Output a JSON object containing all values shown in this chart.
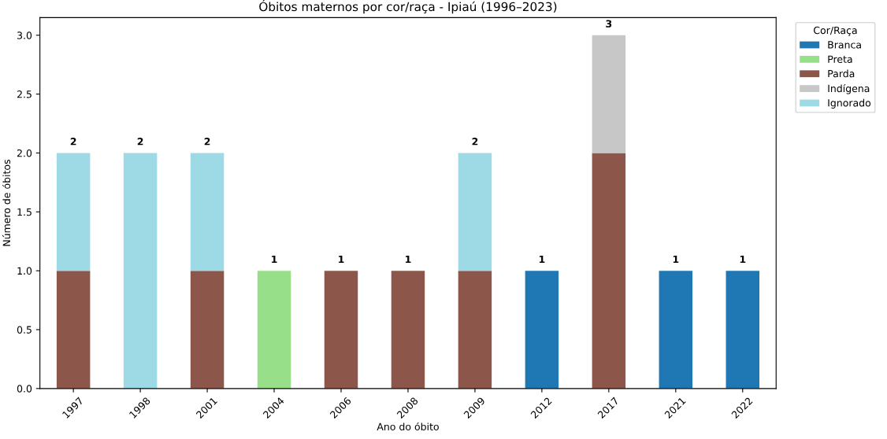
{
  "chart_data": {
    "type": "bar",
    "title": "Óbitos maternos por cor/raça - Ipiaú (1996–2023)",
    "xlabel": "Ano do óbito",
    "ylabel": "Número de óbitos",
    "legend_title": "Cor/Raça",
    "categories": [
      "1997",
      "1998",
      "2001",
      "2004",
      "2006",
      "2008",
      "2009",
      "2012",
      "2017",
      "2021",
      "2022"
    ],
    "stacked": true,
    "series": [
      {
        "name": "Branca",
        "color": "#1f77b4",
        "values": [
          0,
          0,
          0,
          0,
          0,
          0,
          0,
          1,
          0,
          1,
          1
        ]
      },
      {
        "name": "Preta",
        "color": "#98df8a",
        "values": [
          0,
          0,
          0,
          1,
          0,
          0,
          0,
          0,
          0,
          0,
          0
        ]
      },
      {
        "name": "Parda",
        "color": "#8c564b",
        "values": [
          1,
          0,
          1,
          0,
          1,
          1,
          1,
          0,
          2,
          0,
          0
        ]
      },
      {
        "name": "Indígena",
        "color": "#c7c7c7",
        "values": [
          0,
          0,
          0,
          0,
          0,
          0,
          0,
          0,
          1,
          0,
          0
        ]
      },
      {
        "name": "Ignorado",
        "color": "#9edae5",
        "values": [
          1,
          2,
          1,
          0,
          0,
          0,
          1,
          0,
          0,
          0,
          0
        ]
      }
    ],
    "totals": [
      "2",
      "2",
      "2",
      "1",
      "1",
      "1",
      "2",
      "1",
      "3",
      "1",
      "1"
    ],
    "ylim": [
      0,
      3.15
    ],
    "yticks": [
      {
        "value": 0,
        "label": "0.0"
      },
      {
        "value": 0.5,
        "label": "0.5"
      },
      {
        "value": 1,
        "label": "1.0"
      },
      {
        "value": 1.5,
        "label": "1.5"
      },
      {
        "value": 2,
        "label": "2.0"
      },
      {
        "value": 2.5,
        "label": "2.5"
      },
      {
        "value": 3,
        "label": "3.0"
      }
    ],
    "grid": false,
    "legend": "top right"
  }
}
